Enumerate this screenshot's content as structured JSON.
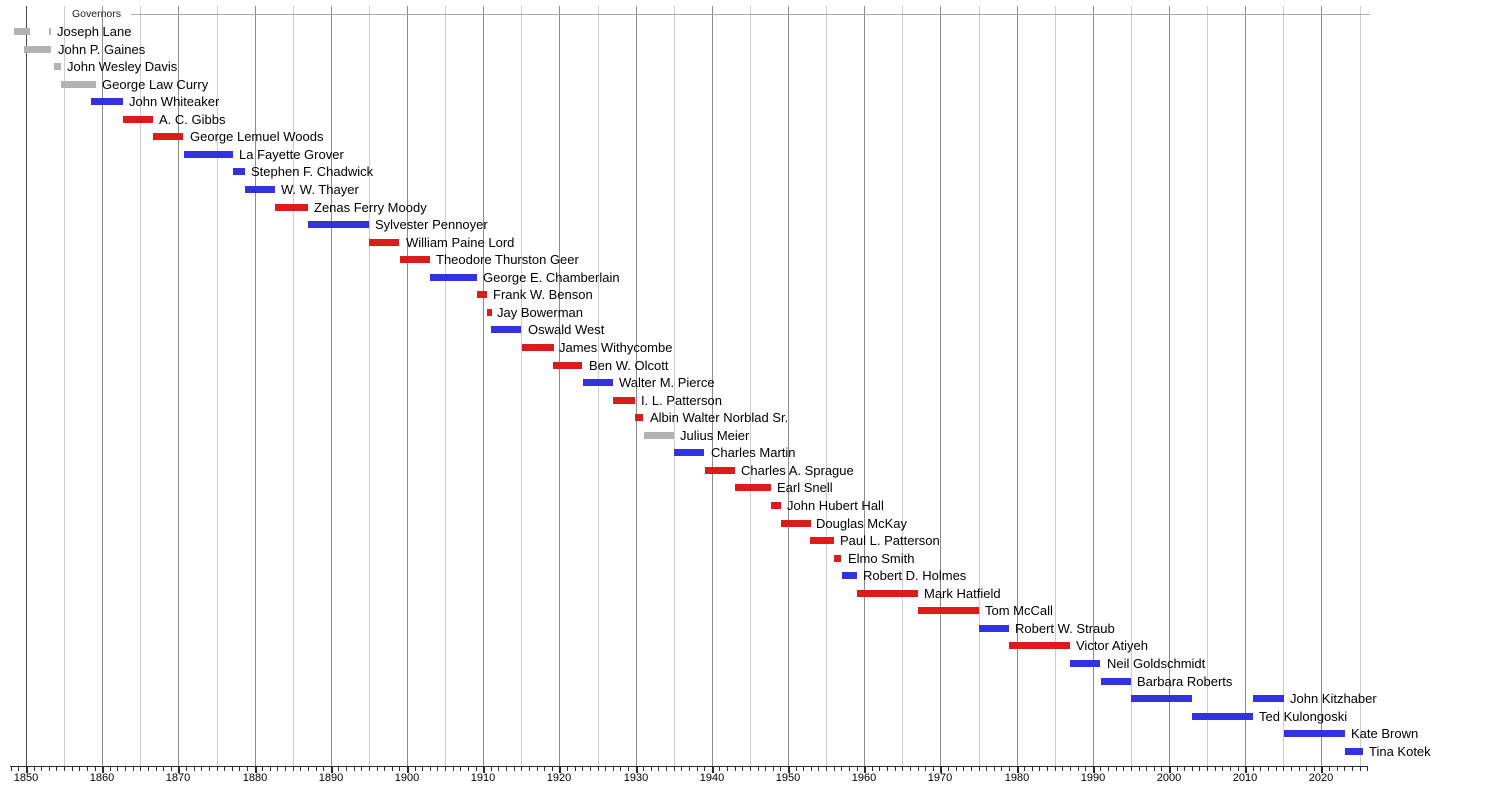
{
  "chart_data": {
    "type": "bar",
    "subtype": "gantt-timeline",
    "title": "Governors",
    "x_axis": {
      "min_year": 1848,
      "max_year": 2026,
      "gridline_every_years": 5,
      "minor_tick_every_years": 1,
      "decade_labels": [
        "1850",
        "1860",
        "1870",
        "1880",
        "1890",
        "1900",
        "1910",
        "1920",
        "1930",
        "1940",
        "1950",
        "1960",
        "1970",
        "1980",
        "1990",
        "2000",
        "2010",
        "2020"
      ]
    },
    "colors": {
      "blue": "#3333dd",
      "red": "#dd1b1b",
      "gray": "#b2b2b2"
    },
    "rows": [
      {
        "name": "Joseph Lane",
        "color": "gray",
        "bars": [
          [
            1848.4,
            1850.5
          ],
          [
            1853.0,
            1853.3
          ]
        ]
      },
      {
        "name": "John P. Gaines",
        "color": "gray",
        "bars": [
          [
            1849.8,
            1853.4
          ]
        ]
      },
      {
        "name": "John Wesley Davis",
        "color": "gray",
        "bars": [
          [
            1853.7,
            1854.6
          ]
        ]
      },
      {
        "name": "George Law Curry",
        "color": "gray",
        "bars": [
          [
            1854.6,
            1859.2
          ]
        ]
      },
      {
        "name": "John Whiteaker",
        "color": "blue",
        "bars": [
          [
            1858.5,
            1862.7
          ]
        ]
      },
      {
        "name": "A. C. Gibbs",
        "color": "red",
        "bars": [
          [
            1862.7,
            1866.7
          ]
        ]
      },
      {
        "name": "George Lemuel Woods",
        "color": "red",
        "bars": [
          [
            1866.7,
            1870.7
          ]
        ]
      },
      {
        "name": "La Fayette Grover",
        "color": "blue",
        "bars": [
          [
            1870.7,
            1877.1
          ]
        ]
      },
      {
        "name": "Stephen F. Chadwick",
        "color": "blue",
        "bars": [
          [
            1877.1,
            1878.7
          ]
        ]
      },
      {
        "name": "W. W. Thayer",
        "color": "blue",
        "bars": [
          [
            1878.7,
            1882.7
          ]
        ]
      },
      {
        "name": "Zenas Ferry Moody",
        "color": "red",
        "bars": [
          [
            1882.7,
            1887.05
          ]
        ]
      },
      {
        "name": "Sylvester Pennoyer",
        "color": "blue",
        "bars": [
          [
            1887.05,
            1895.05
          ]
        ]
      },
      {
        "name": "William Paine Lord",
        "color": "red",
        "bars": [
          [
            1895.05,
            1899.05
          ]
        ]
      },
      {
        "name": "Theodore Thurston Geer",
        "color": "red",
        "bars": [
          [
            1899.05,
            1903.05
          ]
        ]
      },
      {
        "name": "George E. Chamberlain",
        "color": "blue",
        "bars": [
          [
            1903.05,
            1909.2
          ]
        ]
      },
      {
        "name": "Frank W. Benson",
        "color": "red",
        "bars": [
          [
            1909.2,
            1910.45
          ]
        ]
      },
      {
        "name": "Jay Bowerman",
        "color": "red",
        "bars": [
          [
            1910.45,
            1911.05
          ]
        ]
      },
      {
        "name": "Oswald West",
        "color": "blue",
        "bars": [
          [
            1911.05,
            1915.05
          ]
        ]
      },
      {
        "name": "James Withycombe",
        "color": "red",
        "bars": [
          [
            1915.05,
            1919.2
          ]
        ]
      },
      {
        "name": "Ben W. Olcott",
        "color": "red",
        "bars": [
          [
            1919.2,
            1923.05
          ]
        ]
      },
      {
        "name": "Walter M. Pierce",
        "color": "blue",
        "bars": [
          [
            1923.05,
            1927.05
          ]
        ]
      },
      {
        "name": "I. L. Patterson",
        "color": "red",
        "bars": [
          [
            1927.05,
            1929.95
          ]
        ]
      },
      {
        "name": "Albin Walter Norblad Sr.",
        "color": "red",
        "bars": [
          [
            1929.95,
            1931.05
          ]
        ]
      },
      {
        "name": "Julius Meier",
        "color": "gray",
        "bars": [
          [
            1931.05,
            1935.05
          ]
        ]
      },
      {
        "name": "Charles Martin",
        "color": "blue",
        "bars": [
          [
            1935.05,
            1939.05
          ]
        ]
      },
      {
        "name": "Charles A. Sprague",
        "color": "red",
        "bars": [
          [
            1939.05,
            1943.05
          ]
        ]
      },
      {
        "name": "Earl Snell",
        "color": "red",
        "bars": [
          [
            1943.05,
            1947.8
          ]
        ]
      },
      {
        "name": "John Hubert Hall",
        "color": "red",
        "bars": [
          [
            1947.8,
            1949.05
          ]
        ]
      },
      {
        "name": "Douglas McKay",
        "color": "red",
        "bars": [
          [
            1949.05,
            1952.95
          ]
        ]
      },
      {
        "name": "Paul L. Patterson",
        "color": "red",
        "bars": [
          [
            1952.95,
            1956.1
          ]
        ]
      },
      {
        "name": "Elmo Smith",
        "color": "red",
        "bars": [
          [
            1956.1,
            1957.05
          ]
        ]
      },
      {
        "name": "Robert D. Holmes",
        "color": "blue",
        "bars": [
          [
            1957.05,
            1959.05
          ]
        ]
      },
      {
        "name": "Mark Hatfield",
        "color": "red",
        "bars": [
          [
            1959.05,
            1967.05
          ]
        ]
      },
      {
        "name": "Tom McCall",
        "color": "red",
        "bars": [
          [
            1967.05,
            1975.05
          ]
        ]
      },
      {
        "name": "Robert W. Straub",
        "color": "blue",
        "bars": [
          [
            1975.05,
            1979.05
          ]
        ]
      },
      {
        "name": "Victor Atiyeh",
        "color": "red",
        "bars": [
          [
            1979.05,
            1987.05
          ]
        ]
      },
      {
        "name": "Neil Goldschmidt",
        "color": "blue",
        "bars": [
          [
            1987.05,
            1991.05
          ]
        ]
      },
      {
        "name": "Barbara Roberts",
        "color": "blue",
        "bars": [
          [
            1991.05,
            1995.05
          ]
        ]
      },
      {
        "name": "John Kitzhaber",
        "color": "blue",
        "bars": [
          [
            1995.05,
            2003.05
          ],
          [
            2011.05,
            2015.1
          ]
        ]
      },
      {
        "name": "Ted Kulongoski",
        "color": "blue",
        "bars": [
          [
            2003.05,
            2011.05
          ]
        ]
      },
      {
        "name": "Kate Brown",
        "color": "blue",
        "bars": [
          [
            2015.1,
            2023.05
          ]
        ]
      },
      {
        "name": "Tina Kotek",
        "color": "blue",
        "bars": [
          [
            2023.05,
            2025.4
          ]
        ]
      }
    ]
  }
}
